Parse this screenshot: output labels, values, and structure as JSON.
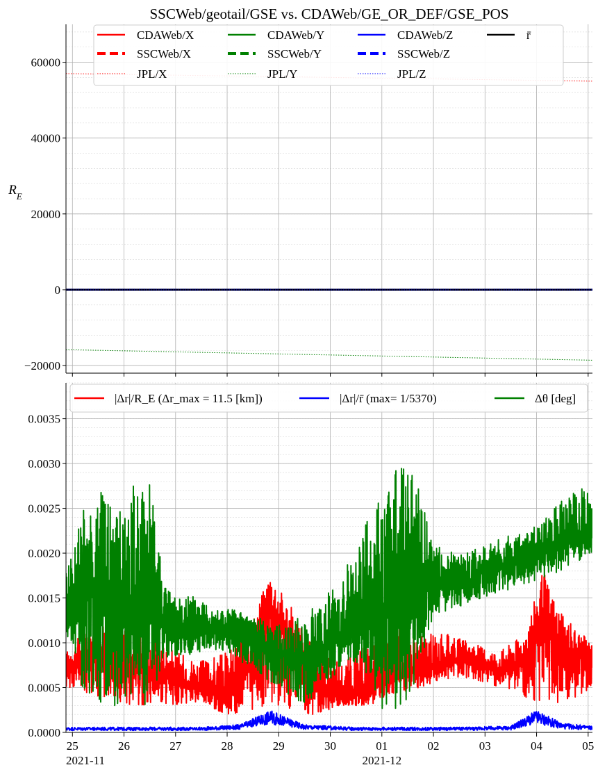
{
  "chart_data": [
    {
      "type": "line",
      "title": "SSCWeb/geotail/GSE vs. CDAWeb/GE_OR_DEF/GSE_POS",
      "ylabel": "R_E",
      "ylim": [
        -22000,
        70000
      ],
      "yticks": [
        -20000,
        0,
        20000,
        40000,
        60000
      ],
      "ytick_labels": [
        "−20000",
        "0",
        "20000",
        "40000",
        "60000"
      ],
      "x_range": [
        "2021-11-24T21:00",
        "2021-12-05T02:00"
      ],
      "grid": true,
      "legend_position": "top",
      "series": [
        {
          "name": "CDAWeb/X",
          "color": "#ff0000",
          "style": "solid",
          "x": [
            "2021-11-24T21:00",
            "2021-12-05T02:00"
          ],
          "values": [
            0,
            0
          ]
        },
        {
          "name": "SSCWeb/X",
          "color": "#ff0000",
          "style": "dashed",
          "x": [
            "2021-11-24T21:00",
            "2021-12-05T02:00"
          ],
          "values": [
            0,
            0
          ]
        },
        {
          "name": "JPL/X",
          "color": "#ff0000",
          "style": "dotted",
          "x": [
            "2021-11-24T21:00",
            "2021-12-05T02:00"
          ],
          "values": [
            57000,
            55000
          ]
        },
        {
          "name": "CDAWeb/Y",
          "color": "#008000",
          "style": "solid",
          "x": [
            "2021-11-24T21:00",
            "2021-12-05T02:00"
          ],
          "values": [
            0,
            0
          ]
        },
        {
          "name": "SSCWeb/Y",
          "color": "#008000",
          "style": "dashed",
          "x": [
            "2021-11-24T21:00",
            "2021-12-05T02:00"
          ],
          "values": [
            0,
            0
          ]
        },
        {
          "name": "JPL/Y",
          "color": "#008000",
          "style": "dotted",
          "x": [
            "2021-11-24T21:00",
            "2021-12-05T02:00"
          ],
          "values": [
            -15800,
            -18600
          ]
        },
        {
          "name": "CDAWeb/Z",
          "color": "#0000ff",
          "style": "solid",
          "x": [
            "2021-11-24T21:00",
            "2021-12-05T02:00"
          ],
          "values": [
            0,
            0
          ]
        },
        {
          "name": "SSCWeb/Z",
          "color": "#0000ff",
          "style": "dashed",
          "x": [
            "2021-11-24T21:00",
            "2021-12-05T02:00"
          ],
          "values": [
            0,
            0
          ]
        },
        {
          "name": "JPL/Z",
          "color": "#0000ff",
          "style": "dotted",
          "x": [
            "2021-11-24T21:00",
            "2021-12-05T02:00"
          ],
          "values": [
            0,
            0
          ]
        },
        {
          "name": "r̄",
          "color": "#000000",
          "style": "solid",
          "x": [
            "2021-11-24T21:00",
            "2021-12-05T02:00"
          ],
          "values": [
            0,
            0
          ]
        }
      ]
    },
    {
      "type": "line",
      "ylim": [
        0,
        0.0039
      ],
      "yticks": [
        0,
        0.0005,
        0.001,
        0.0015,
        0.002,
        0.0025,
        0.003,
        0.0035
      ],
      "ytick_labels": [
        "0.0000",
        "0.0005",
        "0.0010",
        "0.0015",
        "0.0020",
        "0.0025",
        "0.0030",
        "0.0035"
      ],
      "x_range": [
        "2021-11-24T21:00",
        "2021-12-05T02:00"
      ],
      "xtick_labels": [
        "25",
        "26",
        "27",
        "28",
        "29",
        "30",
        "01",
        "02",
        "03",
        "04",
        "05"
      ],
      "xticks": [
        "2021-11-25",
        "2021-11-26",
        "2021-11-27",
        "2021-11-28",
        "2021-11-29",
        "2021-11-30",
        "2021-12-01",
        "2021-12-02",
        "2021-12-03",
        "2021-12-04",
        "2021-12-05"
      ],
      "month_labels": [
        {
          "date": "2021-11-24T21:00",
          "label": "2021-11"
        },
        {
          "date": "2021-12-01",
          "label": "2021-12"
        }
      ],
      "grid": true,
      "legend_position": "top",
      "series": [
        {
          "name": "|Δr|/R_E (Δr_max = 11.5 [km])",
          "color": "#ff0000",
          "x": [
            "2021-11-24T21:00",
            "2021-11-25T12:00",
            "2021-11-26T00:00",
            "2021-11-26T12:00",
            "2021-11-27T00:00",
            "2021-11-27T12:00",
            "2021-11-28T00:00",
            "2021-11-28T12:00",
            "2021-11-28T20:00",
            "2021-11-29T06:00",
            "2021-11-29T18:00",
            "2021-11-30T06:00",
            "2021-11-30T18:00",
            "2021-12-01T06:00",
            "2021-12-01T18:00",
            "2021-12-02T06:00",
            "2021-12-02T18:00",
            "2021-12-03T06:00",
            "2021-12-03T18:00",
            "2021-12-04T03:00",
            "2021-12-04T12:00",
            "2021-12-05T02:00"
          ],
          "values": [
            0.0007,
            0.0009,
            0.0008,
            0.0007,
            0.0006,
            0.0005,
            0.0004,
            0.0008,
            0.0014,
            0.0009,
            0.0005,
            0.0004,
            0.0005,
            0.0006,
            0.0007,
            0.0008,
            0.0008,
            0.0007,
            0.0008,
            0.0013,
            0.0009,
            0.0008
          ],
          "envelope_min": [
            0.0005,
            0.0004,
            0.0003,
            0.0003,
            0.0003,
            0.0003,
            0.0002,
            0.0002,
            0.0003,
            0.0002,
            0.0002,
            0.0003,
            0.0003,
            0.0004,
            0.0005,
            0.0006,
            0.0006,
            0.0005,
            0.0004,
            0.0003,
            0.0003,
            0.0005
          ],
          "envelope_max": [
            0.0009,
            0.0013,
            0.0012,
            0.0011,
            0.0009,
            0.0008,
            0.0009,
            0.0013,
            0.0018,
            0.0014,
            0.0009,
            0.0008,
            0.001,
            0.0012,
            0.0011,
            0.0011,
            0.001,
            0.0009,
            0.0011,
            0.0018,
            0.0013,
            0.001
          ]
        },
        {
          "name": "|Δr|/r̄ (max= 1/5370)",
          "color": "#0000ff",
          "x": [
            "2021-11-24T21:00",
            "2021-11-26T00:00",
            "2021-11-27T12:00",
            "2021-11-28T06:00",
            "2021-11-28T20:00",
            "2021-11-29T12:00",
            "2021-11-30T12:00",
            "2021-12-01T12:00",
            "2021-12-02T12:00",
            "2021-12-03T12:00",
            "2021-12-04T00:00",
            "2021-12-04T12:00",
            "2021-12-05T02:00"
          ],
          "values": [
            4e-05,
            4e-05,
            4e-05,
            6e-05,
            0.00017,
            6e-05,
            4e-05,
            4e-05,
            4e-05,
            5e-05,
            0.00017,
            7e-05,
            5e-05
          ]
        },
        {
          "name": "Δθ [deg]",
          "color": "#008000",
          "x": [
            "2021-11-24T21:00",
            "2021-11-25T06:00",
            "2021-11-25T12:00",
            "2021-11-25T20:00",
            "2021-11-26T06:00",
            "2021-11-26T12:00",
            "2021-11-26T20:00",
            "2021-11-27T12:00",
            "2021-11-28T00:00",
            "2021-11-28T12:00",
            "2021-11-29T00:00",
            "2021-11-29T12:00",
            "2021-11-30T00:00",
            "2021-11-30T12:00",
            "2021-12-01T00:00",
            "2021-12-01T12:00",
            "2021-12-02T00:00",
            "2021-12-02T12:00",
            "2021-12-03T00:00",
            "2021-12-03T12:00",
            "2021-12-04T00:00",
            "2021-12-04T12:00",
            "2021-12-05T02:00"
          ],
          "values": [
            0.0014,
            0.0017,
            0.0015,
            0.0016,
            0.0013,
            0.0015,
            0.0012,
            0.0012,
            0.0011,
            0.0011,
            0.0009,
            0.0008,
            0.001,
            0.0012,
            0.0013,
            0.0016,
            0.0017,
            0.0016,
            0.0018,
            0.0019,
            0.002,
            0.0021,
            0.0022
          ],
          "envelope_min": [
            0.0011,
            0.0004,
            0.0003,
            0.0003,
            0.0003,
            0.0003,
            0.0008,
            0.0009,
            0.0009,
            0.0007,
            0.0005,
            0.0003,
            0.0006,
            0.0008,
            0.0002,
            0.0003,
            0.0013,
            0.0014,
            0.0015,
            0.0016,
            0.0017,
            0.0018,
            0.002
          ],
          "envelope_max": [
            0.0018,
            0.0026,
            0.0028,
            0.0025,
            0.0028,
            0.0029,
            0.0016,
            0.0015,
            0.0014,
            0.0013,
            0.0012,
            0.0013,
            0.0016,
            0.0021,
            0.0027,
            0.0032,
            0.0021,
            0.002,
            0.0021,
            0.0022,
            0.0023,
            0.0026,
            0.0028
          ]
        }
      ]
    }
  ]
}
